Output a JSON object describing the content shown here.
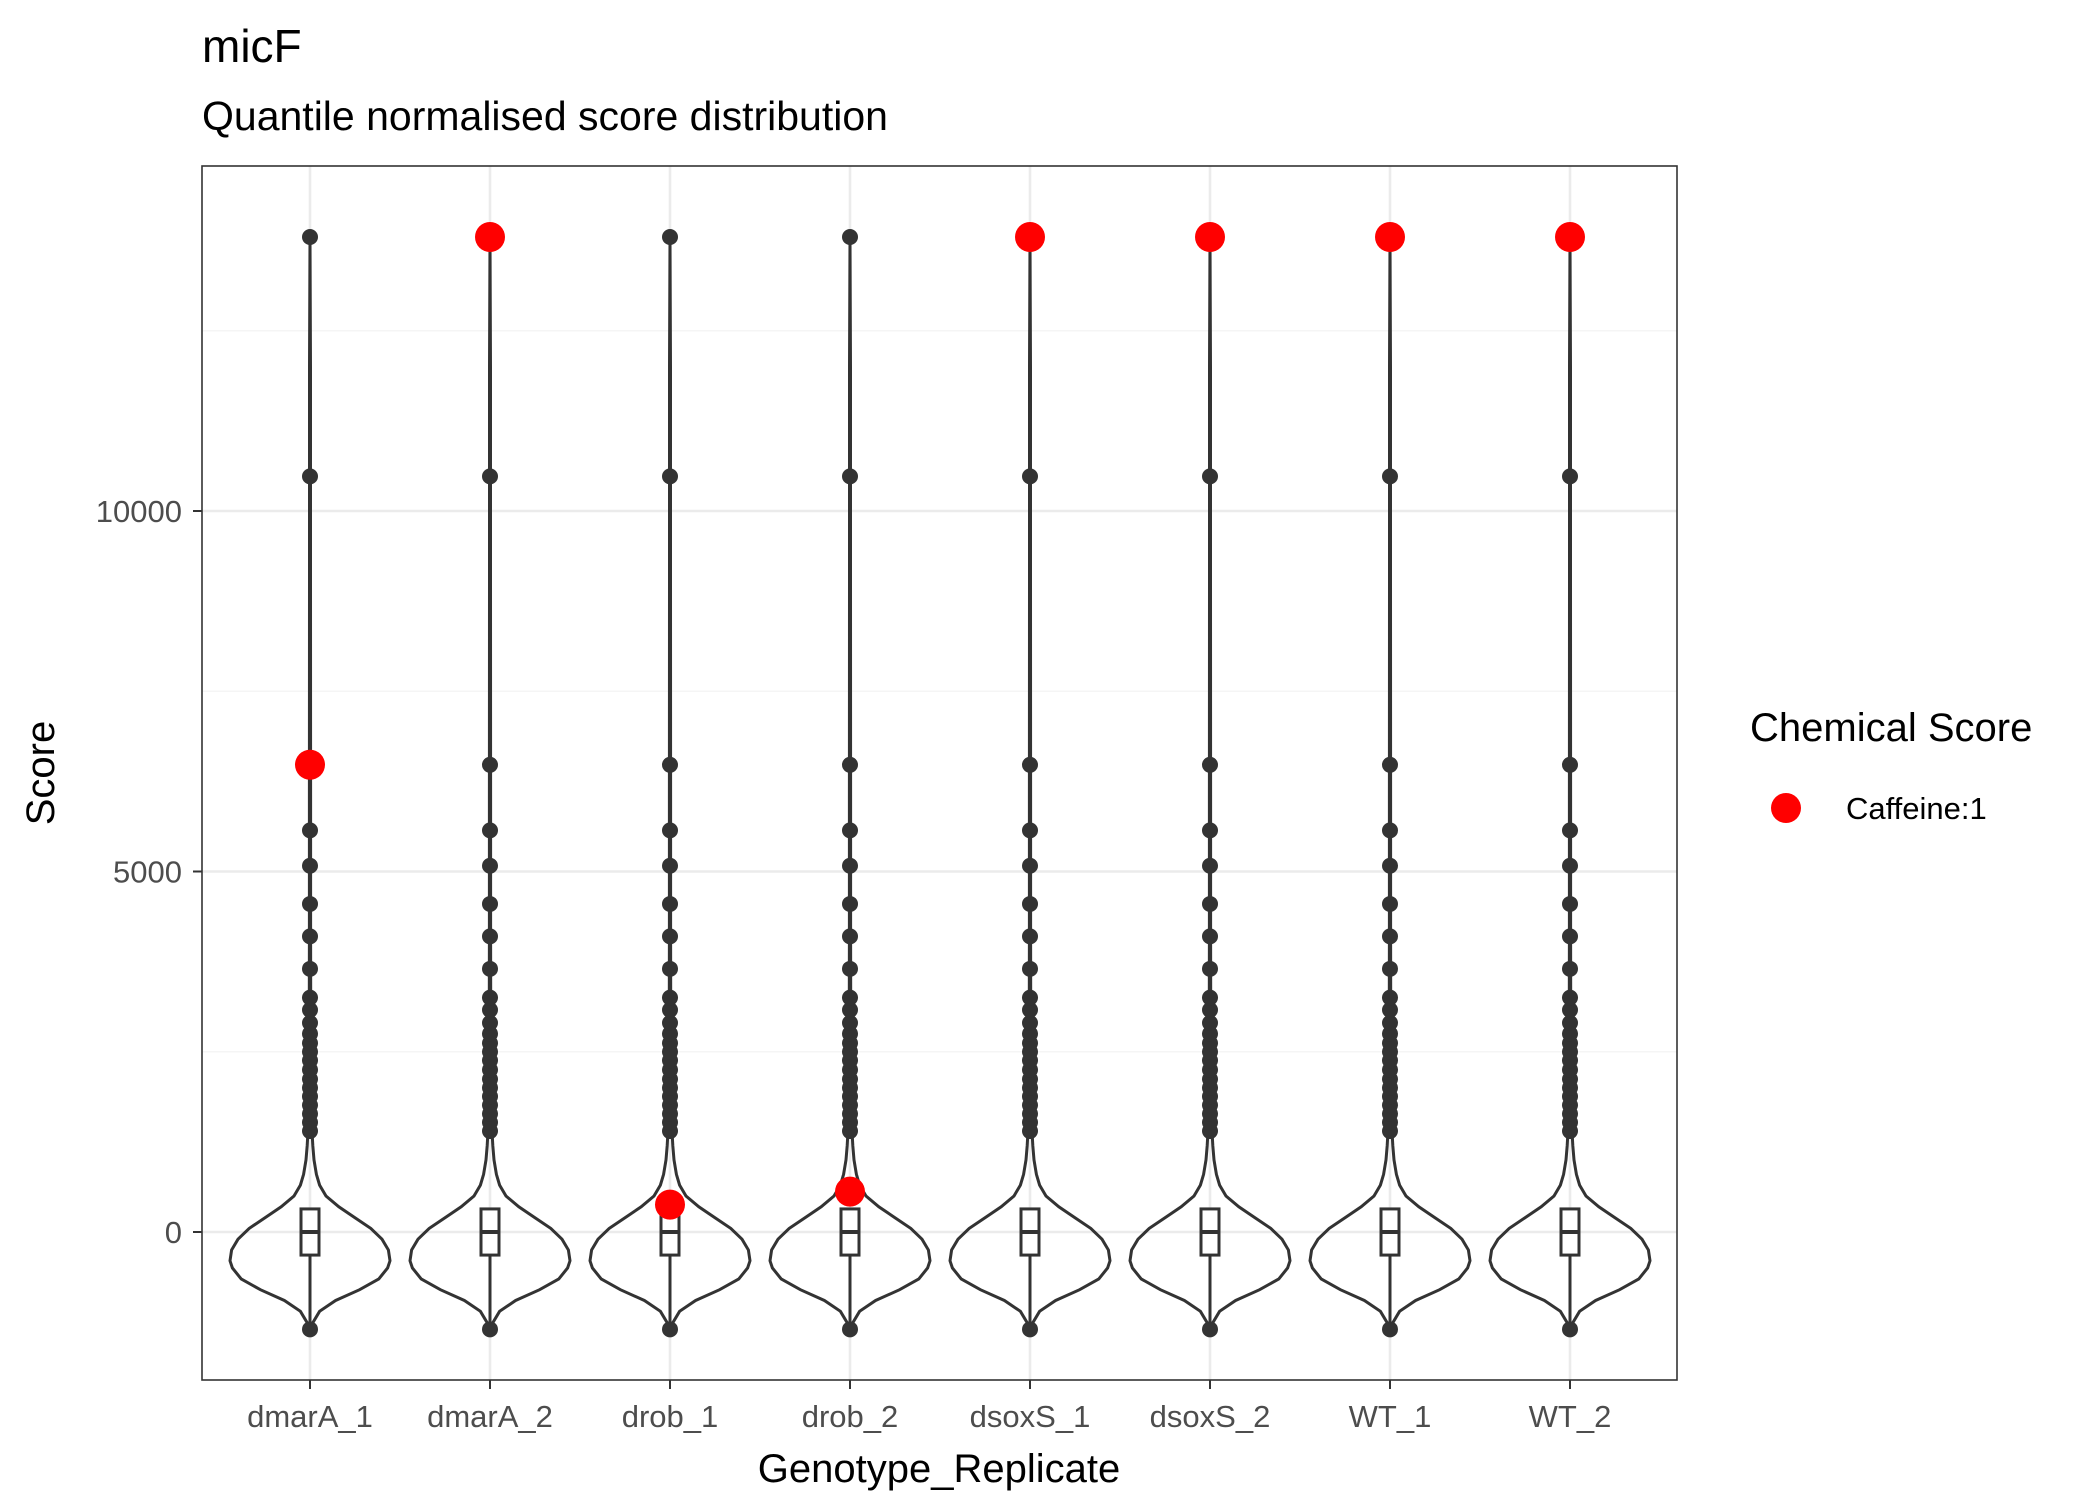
{
  "chart_data": {
    "type": "violin",
    "title": "micF",
    "subtitle": "Quantile normalised score distribution",
    "xlabel": "Genotype_Replicate",
    "ylabel": "Score",
    "categories": [
      "dmarA_1",
      "dmarA_2",
      "drob_1",
      "drob_2",
      "dsoxS_1",
      "dsoxS_2",
      "WT_1",
      "WT_2"
    ],
    "ylim": [
      -2000,
      14500
    ],
    "yticks": [
      0,
      5000,
      10000
    ],
    "ytick_labels": [
      "0",
      "5000",
      "10000"
    ],
    "grid": true,
    "distribution": {
      "min": -1350,
      "q1": -320,
      "median": 0,
      "q3": 320,
      "whisker_high": 1300,
      "outliers": [
        1400,
        1520,
        1640,
        1760,
        1880,
        2000,
        2120,
        2250,
        2380,
        2500,
        2620,
        2750,
        2900,
        3080,
        3250,
        3650,
        4100,
        4550,
        5080,
        5570,
        6480,
        10480,
        13800
      ]
    },
    "series": [
      {
        "name": "Caffeine:1",
        "color": "#ff0000",
        "values": [
          6480,
          13800,
          380,
          560,
          13800,
          13800,
          13800,
          13800
        ]
      }
    ],
    "legend": {
      "title": "Chemical Score",
      "placement": "right"
    },
    "colors": {
      "outline": "#333333",
      "highlight": "#ff0000",
      "grid_major": "#ebebeb",
      "grid_minor": "#f5f5f5",
      "panel_border": "#333333"
    }
  }
}
